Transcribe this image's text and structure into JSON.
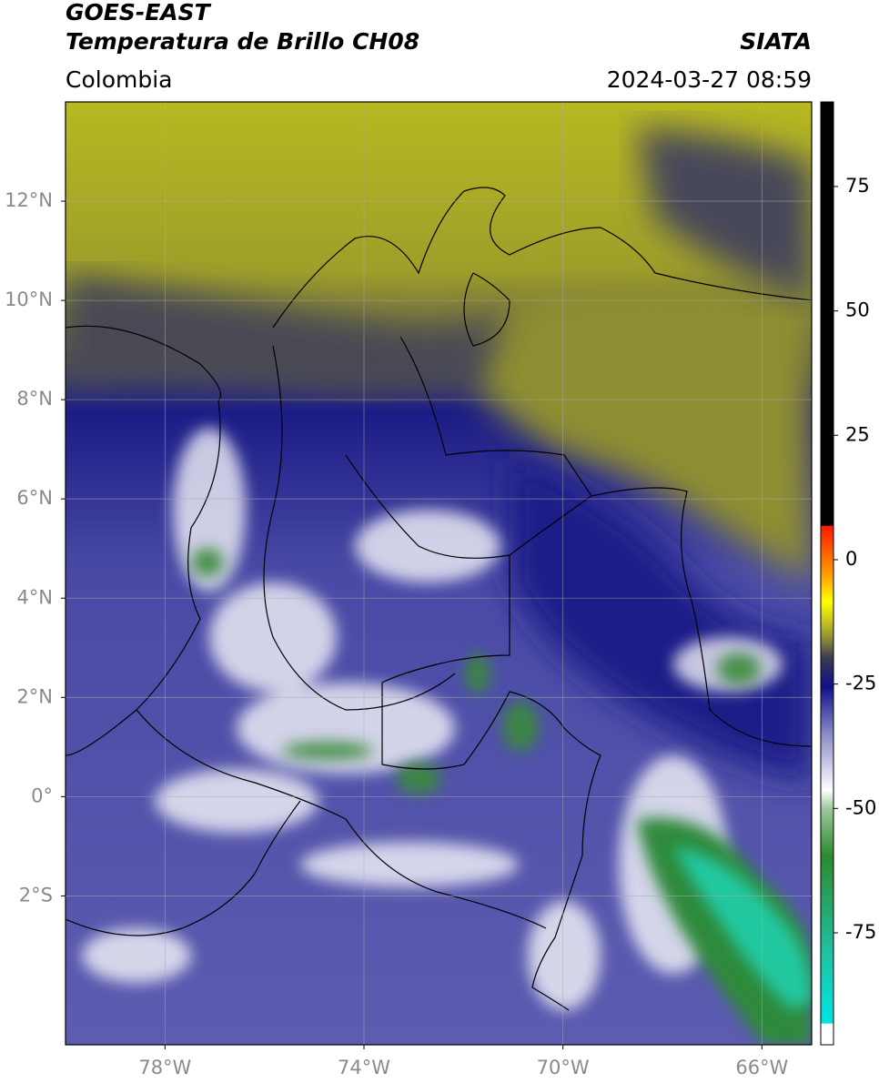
{
  "header": {
    "title": "GOES-EAST",
    "subtitle": "Temperatura de Brillo CH08",
    "source": "SIATA",
    "region": "Colombia",
    "timestamp": "2024-03-27 08:59"
  },
  "map": {
    "xlim": [
      -80,
      -65
    ],
    "ylim": [
      -5,
      14
    ],
    "yticks": [
      {
        "value": 12,
        "label": "12°N"
      },
      {
        "value": 10,
        "label": "10°N"
      },
      {
        "value": 8,
        "label": "8°N"
      },
      {
        "value": 6,
        "label": "6°N"
      },
      {
        "value": 4,
        "label": "4°N"
      },
      {
        "value": 2,
        "label": "2°N"
      },
      {
        "value": 0,
        "label": "0°"
      },
      {
        "value": -2,
        "label": "2°S"
      }
    ],
    "xticks": [
      {
        "value": -78,
        "label": "78°W"
      },
      {
        "value": -74,
        "label": "74°W"
      },
      {
        "value": -70,
        "label": "70°W"
      },
      {
        "value": -66,
        "label": "66°W"
      }
    ],
    "grid": true
  },
  "colorbar": {
    "lim": [
      -97.5,
      92
    ],
    "ticks": [
      75,
      50,
      25,
      0,
      -25,
      -50,
      -75
    ]
  }
}
